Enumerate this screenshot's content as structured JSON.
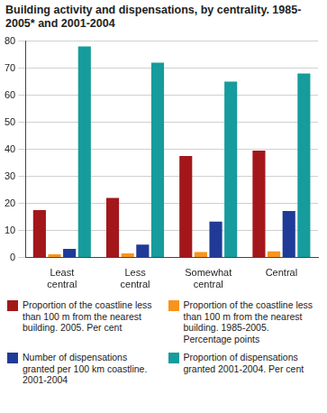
{
  "chart_data": {
    "type": "bar",
    "title": "Building activity and dispensations, by centrality. 1985-2005* and 2001-2004",
    "categories": [
      "Least central",
      "Less central",
      "Somewhat central",
      "Central"
    ],
    "series": [
      {
        "name": "Proportion of the coastline less than 100 m from the nearest building. 2005. Per cent",
        "color": "#a3171b",
        "values": [
          17.5,
          22,
          37.5,
          39.5
        ]
      },
      {
        "name": "Proportion of the coastline less than 100 m from the nearest building. 1985-2005. Percentage points",
        "color": "#f7941d",
        "values": [
          1.2,
          1.5,
          2,
          2.3
        ]
      },
      {
        "name": "Number of dispensations granted per 100 km coastline. 2001-2004",
        "color": "#1f3b97",
        "values": [
          3.2,
          4.8,
          13.3,
          17.2
        ]
      },
      {
        "name": "Proportion of dispensations granted 2001-2004. Per cent",
        "color": "#169c9c",
        "values": [
          78,
          72,
          65,
          68
        ]
      }
    ],
    "ylim": [
      0,
      80
    ],
    "yticks": [
      0,
      10,
      20,
      30,
      40,
      50,
      60,
      70,
      80
    ],
    "grid": true,
    "legend": "bottom"
  }
}
